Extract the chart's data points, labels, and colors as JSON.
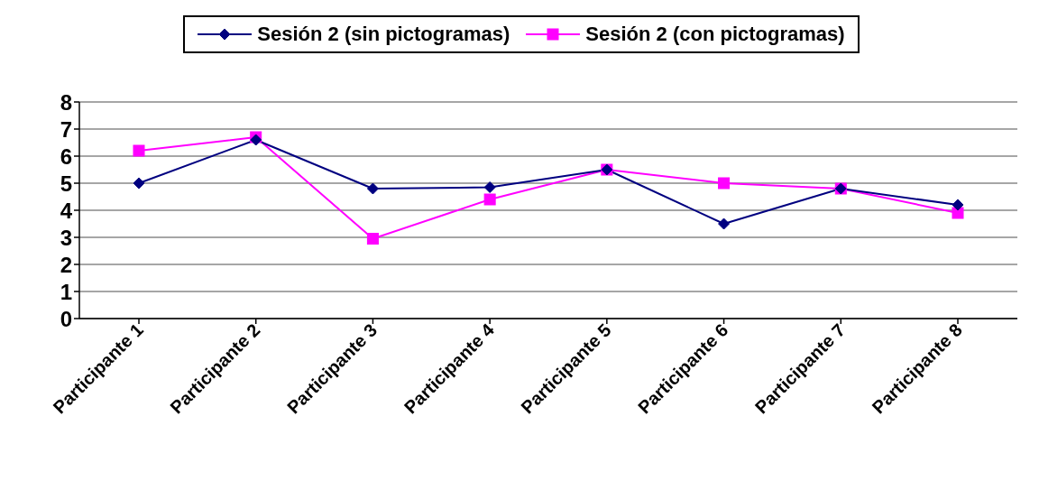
{
  "chart_data": {
    "type": "line",
    "categories": [
      "Participante 1",
      "Participante 2",
      "Participante 3",
      "Participante 4",
      "Participante 5",
      "Participante 6",
      "Participante 7",
      "Participante 8"
    ],
    "series": [
      {
        "name": "Sesión 2 (sin pictogramas)",
        "color": "#000080",
        "marker": "diamond",
        "values": [
          5.0,
          6.6,
          4.8,
          4.85,
          5.5,
          3.5,
          4.8,
          4.2
        ]
      },
      {
        "name": "Sesión 2 (con pictogramas)",
        "color": "#ff00ff",
        "marker": "square",
        "values": [
          6.2,
          6.7,
          2.95,
          4.4,
          5.5,
          5.0,
          4.8,
          3.9
        ]
      }
    ],
    "ylim": [
      0,
      8
    ],
    "yticks": [
      0,
      1,
      2,
      3,
      4,
      5,
      6,
      7,
      8
    ],
    "grid": "y",
    "legend": "top",
    "line_style": "solid"
  }
}
